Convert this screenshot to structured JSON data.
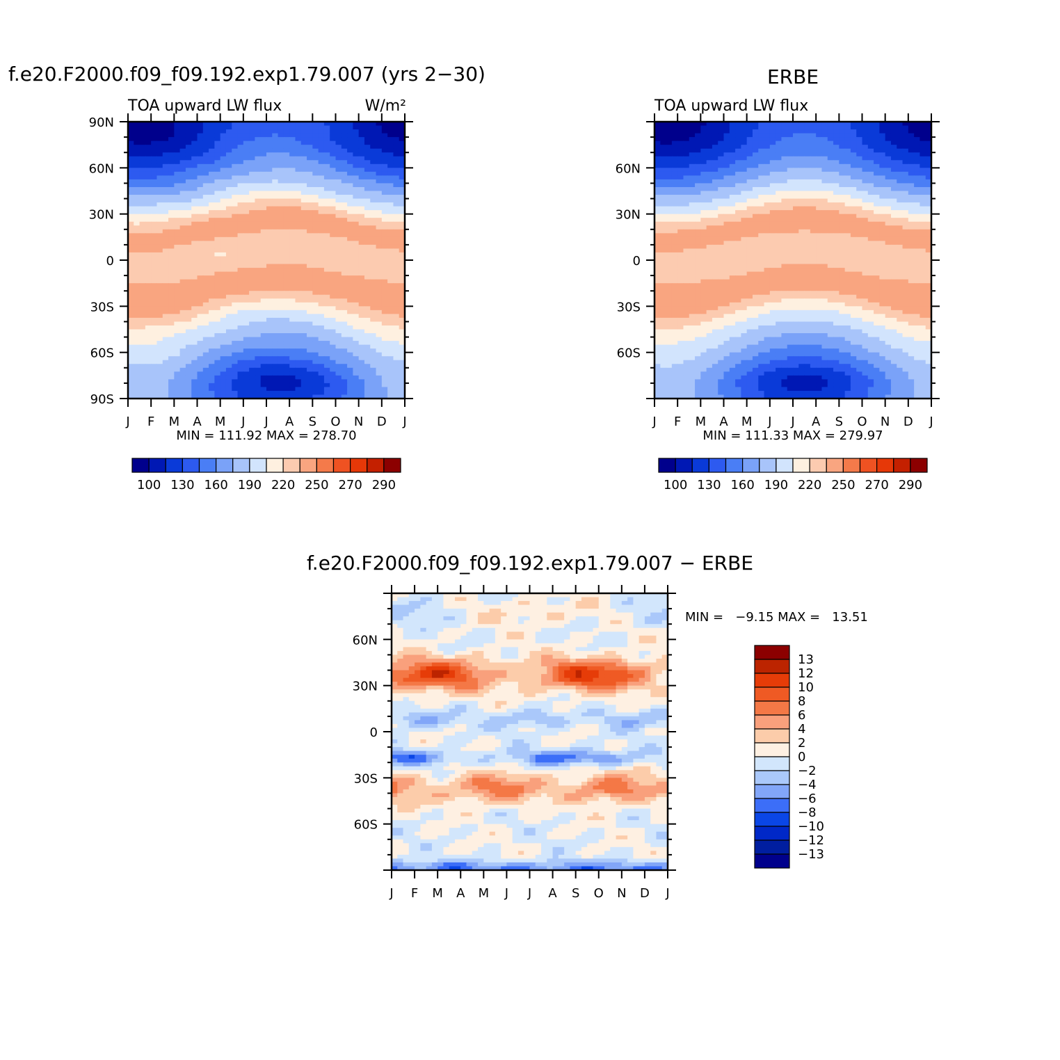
{
  "palette": {
    "flux": [
      "#00008c",
      "#0018b4",
      "#0a3ad8",
      "#2d5af0",
      "#4a7ef5",
      "#7aa2f8",
      "#a8c4fa",
      "#d2e4fd",
      "#fef0e0",
      "#fccbb0",
      "#f9a580",
      "#f47a4a",
      "#ef5222",
      "#e63808",
      "#c42000",
      "#8c0000"
    ],
    "diff": [
      "#00008c",
      "#001ea0",
      "#0028c8",
      "#0a46e6",
      "#3c6ef8",
      "#82a6f8",
      "#aac8fa",
      "#d2e6fc",
      "#fef0e2",
      "#fcccaa",
      "#f9a07c",
      "#f47846",
      "#ef5a24",
      "#e63c08",
      "#bc2400",
      "#8c0000"
    ]
  },
  "chart_data": [
    {
      "type": "heatmap",
      "title": "f.e20.F2000.f09_f09.192.exp1.79.007 (yrs 2−30)",
      "subtitle_left": "TOA upward LW flux",
      "units": "W/m²",
      "months": [
        "J",
        "F",
        "M",
        "A",
        "M",
        "J",
        "J",
        "A",
        "S",
        "O",
        "N",
        "D",
        "J"
      ],
      "y_ticks": [
        "90N",
        "60N",
        "30N",
        "0",
        "30S",
        "60S",
        "90S"
      ],
      "ylim": [
        -90,
        90
      ],
      "field": "model",
      "stats": "MIN = 111.92 MAX = 278.70",
      "min": 111.92,
      "max": 278.7,
      "colorbar_labels": [
        "100",
        "130",
        "160",
        "190",
        "220",
        "250",
        "270",
        "290"
      ]
    },
    {
      "type": "heatmap",
      "title": "ERBE",
      "subtitle_left": "TOA upward LW flux",
      "months": [
        "J",
        "F",
        "M",
        "A",
        "M",
        "J",
        "J",
        "A",
        "S",
        "O",
        "N",
        "D",
        "J"
      ],
      "y_ticks": [
        "60N",
        "30N",
        "0",
        "30S",
        "60S"
      ],
      "ylim": [
        -90,
        90
      ],
      "field": "obs",
      "stats": "MIN = 111.33 MAX = 279.97",
      "min": 111.33,
      "max": 279.97,
      "colorbar_labels": [
        "100",
        "130",
        "160",
        "190",
        "220",
        "250",
        "270",
        "290"
      ]
    },
    {
      "type": "heatmap",
      "title": "f.e20.F2000.f09_f09.192.exp1.79.007 − ERBE",
      "months": [
        "J",
        "F",
        "M",
        "A",
        "M",
        "J",
        "J",
        "A",
        "S",
        "O",
        "N",
        "D",
        "J"
      ],
      "y_ticks": [
        "60N",
        "30N",
        "0",
        "30S",
        "60S"
      ],
      "ylim": [
        -90,
        90
      ],
      "field": "diff",
      "stats": "MIN =   −9.15 MAX =   13.51",
      "min": -9.15,
      "max": 13.51,
      "colorbar_labels": [
        "13",
        "12",
        "10",
        "8",
        "6",
        "4",
        "2",
        "0",
        "−2",
        "−4",
        "−6",
        "−8",
        "−10",
        "−12",
        "−13"
      ]
    }
  ]
}
